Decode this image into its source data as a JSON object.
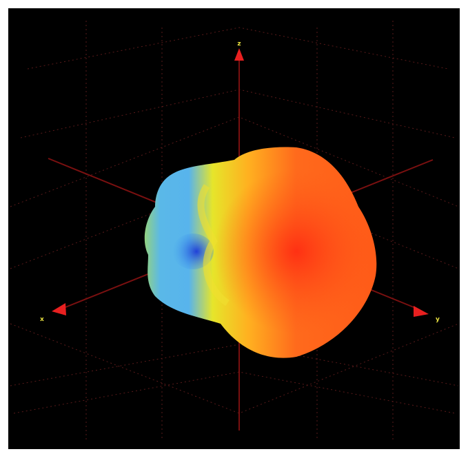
{
  "axis_labels": {
    "top": "z",
    "left": "x",
    "right": "y"
  }
}
